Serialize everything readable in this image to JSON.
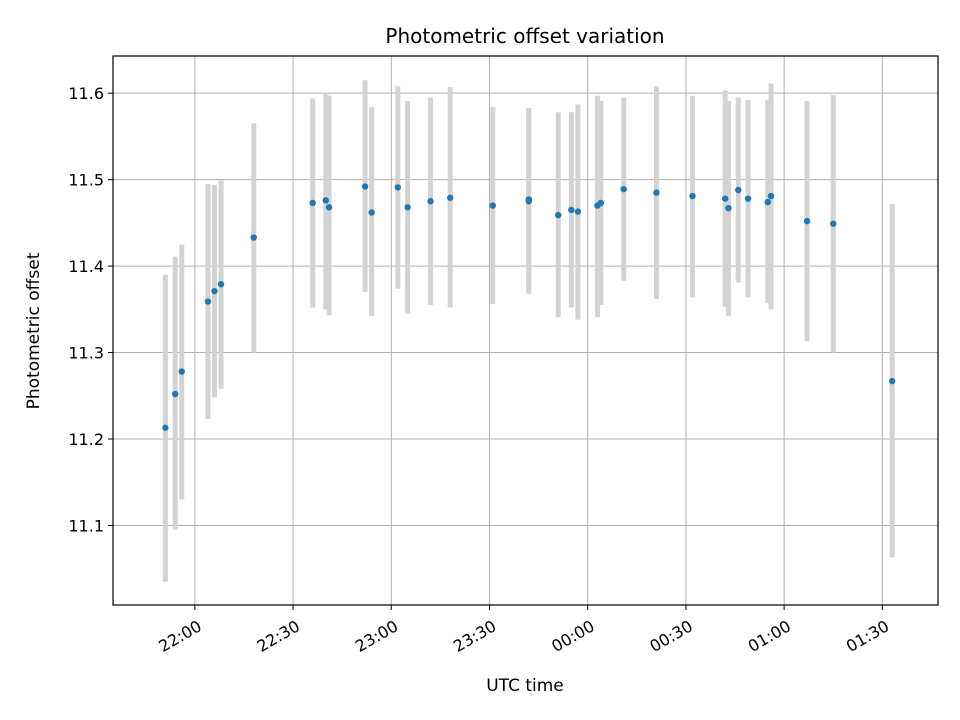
{
  "chart_data": {
    "type": "scatter",
    "title": "Photometric offset variation",
    "xlabel": "UTC time",
    "ylabel": "Photometric offset",
    "x_axis_type": "time",
    "xlim": [
      "21:35",
      "01:47"
    ],
    "ylim": [
      11.008,
      11.643
    ],
    "grid": true,
    "x_ticks": [
      "22:00",
      "22:30",
      "23:00",
      "23:30",
      "00:00",
      "00:30",
      "01:00",
      "01:30"
    ],
    "y_ticks": [
      "11.1",
      "11.2",
      "11.3",
      "11.4",
      "11.5",
      "11.6"
    ],
    "colors": {
      "point": "#1f77b4",
      "errorbar": "#d3d3d3",
      "grid": "#b0b0b0"
    },
    "series": [
      {
        "points": [
          {
            "x": "21:51",
            "y": 11.213,
            "ylow": 11.035,
            "yhigh": 11.39
          },
          {
            "x": "21:54",
            "y": 11.252,
            "ylow": 11.095,
            "yhigh": 11.411
          },
          {
            "x": "21:56",
            "y": 11.278,
            "ylow": 11.13,
            "yhigh": 11.425
          },
          {
            "x": "22:04",
            "y": 11.359,
            "ylow": 11.223,
            "yhigh": 11.495
          },
          {
            "x": "22:06",
            "y": 11.371,
            "ylow": 11.248,
            "yhigh": 11.494
          },
          {
            "x": "22:08",
            "y": 11.379,
            "ylow": 11.258,
            "yhigh": 11.499
          },
          {
            "x": "22:18",
            "y": 11.433,
            "ylow": 11.3,
            "yhigh": 11.565
          },
          {
            "x": "22:36",
            "y": 11.473,
            "ylow": 11.352,
            "yhigh": 11.594
          },
          {
            "x": "22:40",
            "y": 11.476,
            "ylow": 11.35,
            "yhigh": 11.6
          },
          {
            "x": "22:41",
            "y": 11.468,
            "ylow": 11.343,
            "yhigh": 11.597
          },
          {
            "x": "22:52",
            "y": 11.492,
            "ylow": 11.37,
            "yhigh": 11.615
          },
          {
            "x": "22:54",
            "y": 11.462,
            "ylow": 11.342,
            "yhigh": 11.584
          },
          {
            "x": "23:02",
            "y": 11.491,
            "ylow": 11.374,
            "yhigh": 11.608
          },
          {
            "x": "23:05",
            "y": 11.468,
            "ylow": 11.345,
            "yhigh": 11.591
          },
          {
            "x": "23:12",
            "y": 11.475,
            "ylow": 11.355,
            "yhigh": 11.595
          },
          {
            "x": "23:18",
            "y": 11.479,
            "ylow": 11.352,
            "yhigh": 11.607
          },
          {
            "x": "23:31",
            "y": 11.47,
            "ylow": 11.356,
            "yhigh": 11.584
          },
          {
            "x": "23:42",
            "y": 11.477,
            "ylow": 11.373,
            "yhigh": 11.583
          },
          {
            "x": "23:42",
            "y": 11.475,
            "ylow": 11.368,
            "yhigh": 11.582
          },
          {
            "x": "23:51",
            "y": 11.459,
            "ylow": 11.341,
            "yhigh": 11.578
          },
          {
            "x": "23:55",
            "y": 11.465,
            "ylow": 11.352,
            "yhigh": 11.578
          },
          {
            "x": "23:57",
            "y": 11.463,
            "ylow": 11.338,
            "yhigh": 11.587
          },
          {
            "x": "00:03",
            "y": 11.47,
            "ylow": 11.341,
            "yhigh": 11.597
          },
          {
            "x": "00:04",
            "y": 11.473,
            "ylow": 11.355,
            "yhigh": 11.591
          },
          {
            "x": "00:11",
            "y": 11.489,
            "ylow": 11.383,
            "yhigh": 11.595
          },
          {
            "x": "00:21",
            "y": 11.485,
            "ylow": 11.362,
            "yhigh": 11.608
          },
          {
            "x": "00:32",
            "y": 11.481,
            "ylow": 11.364,
            "yhigh": 11.597
          },
          {
            "x": "00:42",
            "y": 11.478,
            "ylow": 11.353,
            "yhigh": 11.603
          },
          {
            "x": "00:43",
            "y": 11.467,
            "ylow": 11.342,
            "yhigh": 11.591
          },
          {
            "x": "00:46",
            "y": 11.488,
            "ylow": 11.381,
            "yhigh": 11.595
          },
          {
            "x": "00:49",
            "y": 11.478,
            "ylow": 11.364,
            "yhigh": 11.592
          },
          {
            "x": "00:55",
            "y": 11.474,
            "ylow": 11.357,
            "yhigh": 11.592
          },
          {
            "x": "00:56",
            "y": 11.481,
            "ylow": 11.35,
            "yhigh": 11.611
          },
          {
            "x": "01:07",
            "y": 11.452,
            "ylow": 11.313,
            "yhigh": 11.591
          },
          {
            "x": "01:15",
            "y": 11.449,
            "ylow": 11.3,
            "yhigh": 11.598
          },
          {
            "x": "01:33",
            "y": 11.267,
            "ylow": 11.063,
            "yhigh": 11.472
          }
        ]
      }
    ]
  }
}
